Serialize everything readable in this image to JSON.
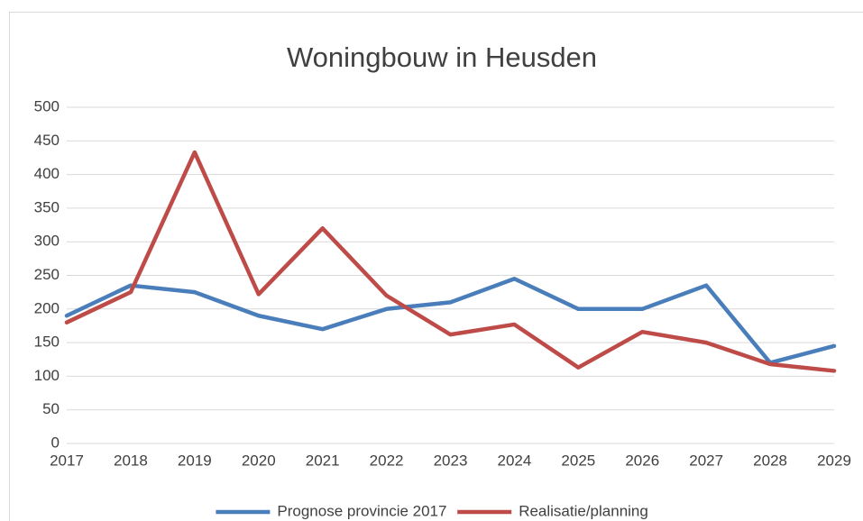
{
  "chart_data": {
    "type": "line",
    "title": "Woningbouw in Heusden",
    "categories": [
      "2017",
      "2018",
      "2019",
      "2020",
      "2021",
      "2022",
      "2023",
      "2024",
      "2025",
      "2026",
      "2027",
      "2028",
      "2029"
    ],
    "series": [
      {
        "name": "Prognose provincie 2017",
        "color": "#4a7ebb",
        "values": [
          190,
          235,
          225,
          190,
          170,
          200,
          210,
          245,
          200,
          200,
          235,
          120,
          145
        ]
      },
      {
        "name": "Realisatie/planning",
        "color": "#be4b48",
        "values": [
          180,
          225,
          433,
          222,
          320,
          220,
          162,
          177,
          113,
          166,
          150,
          118,
          108
        ]
      }
    ],
    "ylim": [
      0,
      500
    ],
    "yticks": [
      0,
      50,
      100,
      150,
      200,
      250,
      300,
      350,
      400,
      450,
      500
    ],
    "grid": true,
    "legend": "bottom"
  }
}
